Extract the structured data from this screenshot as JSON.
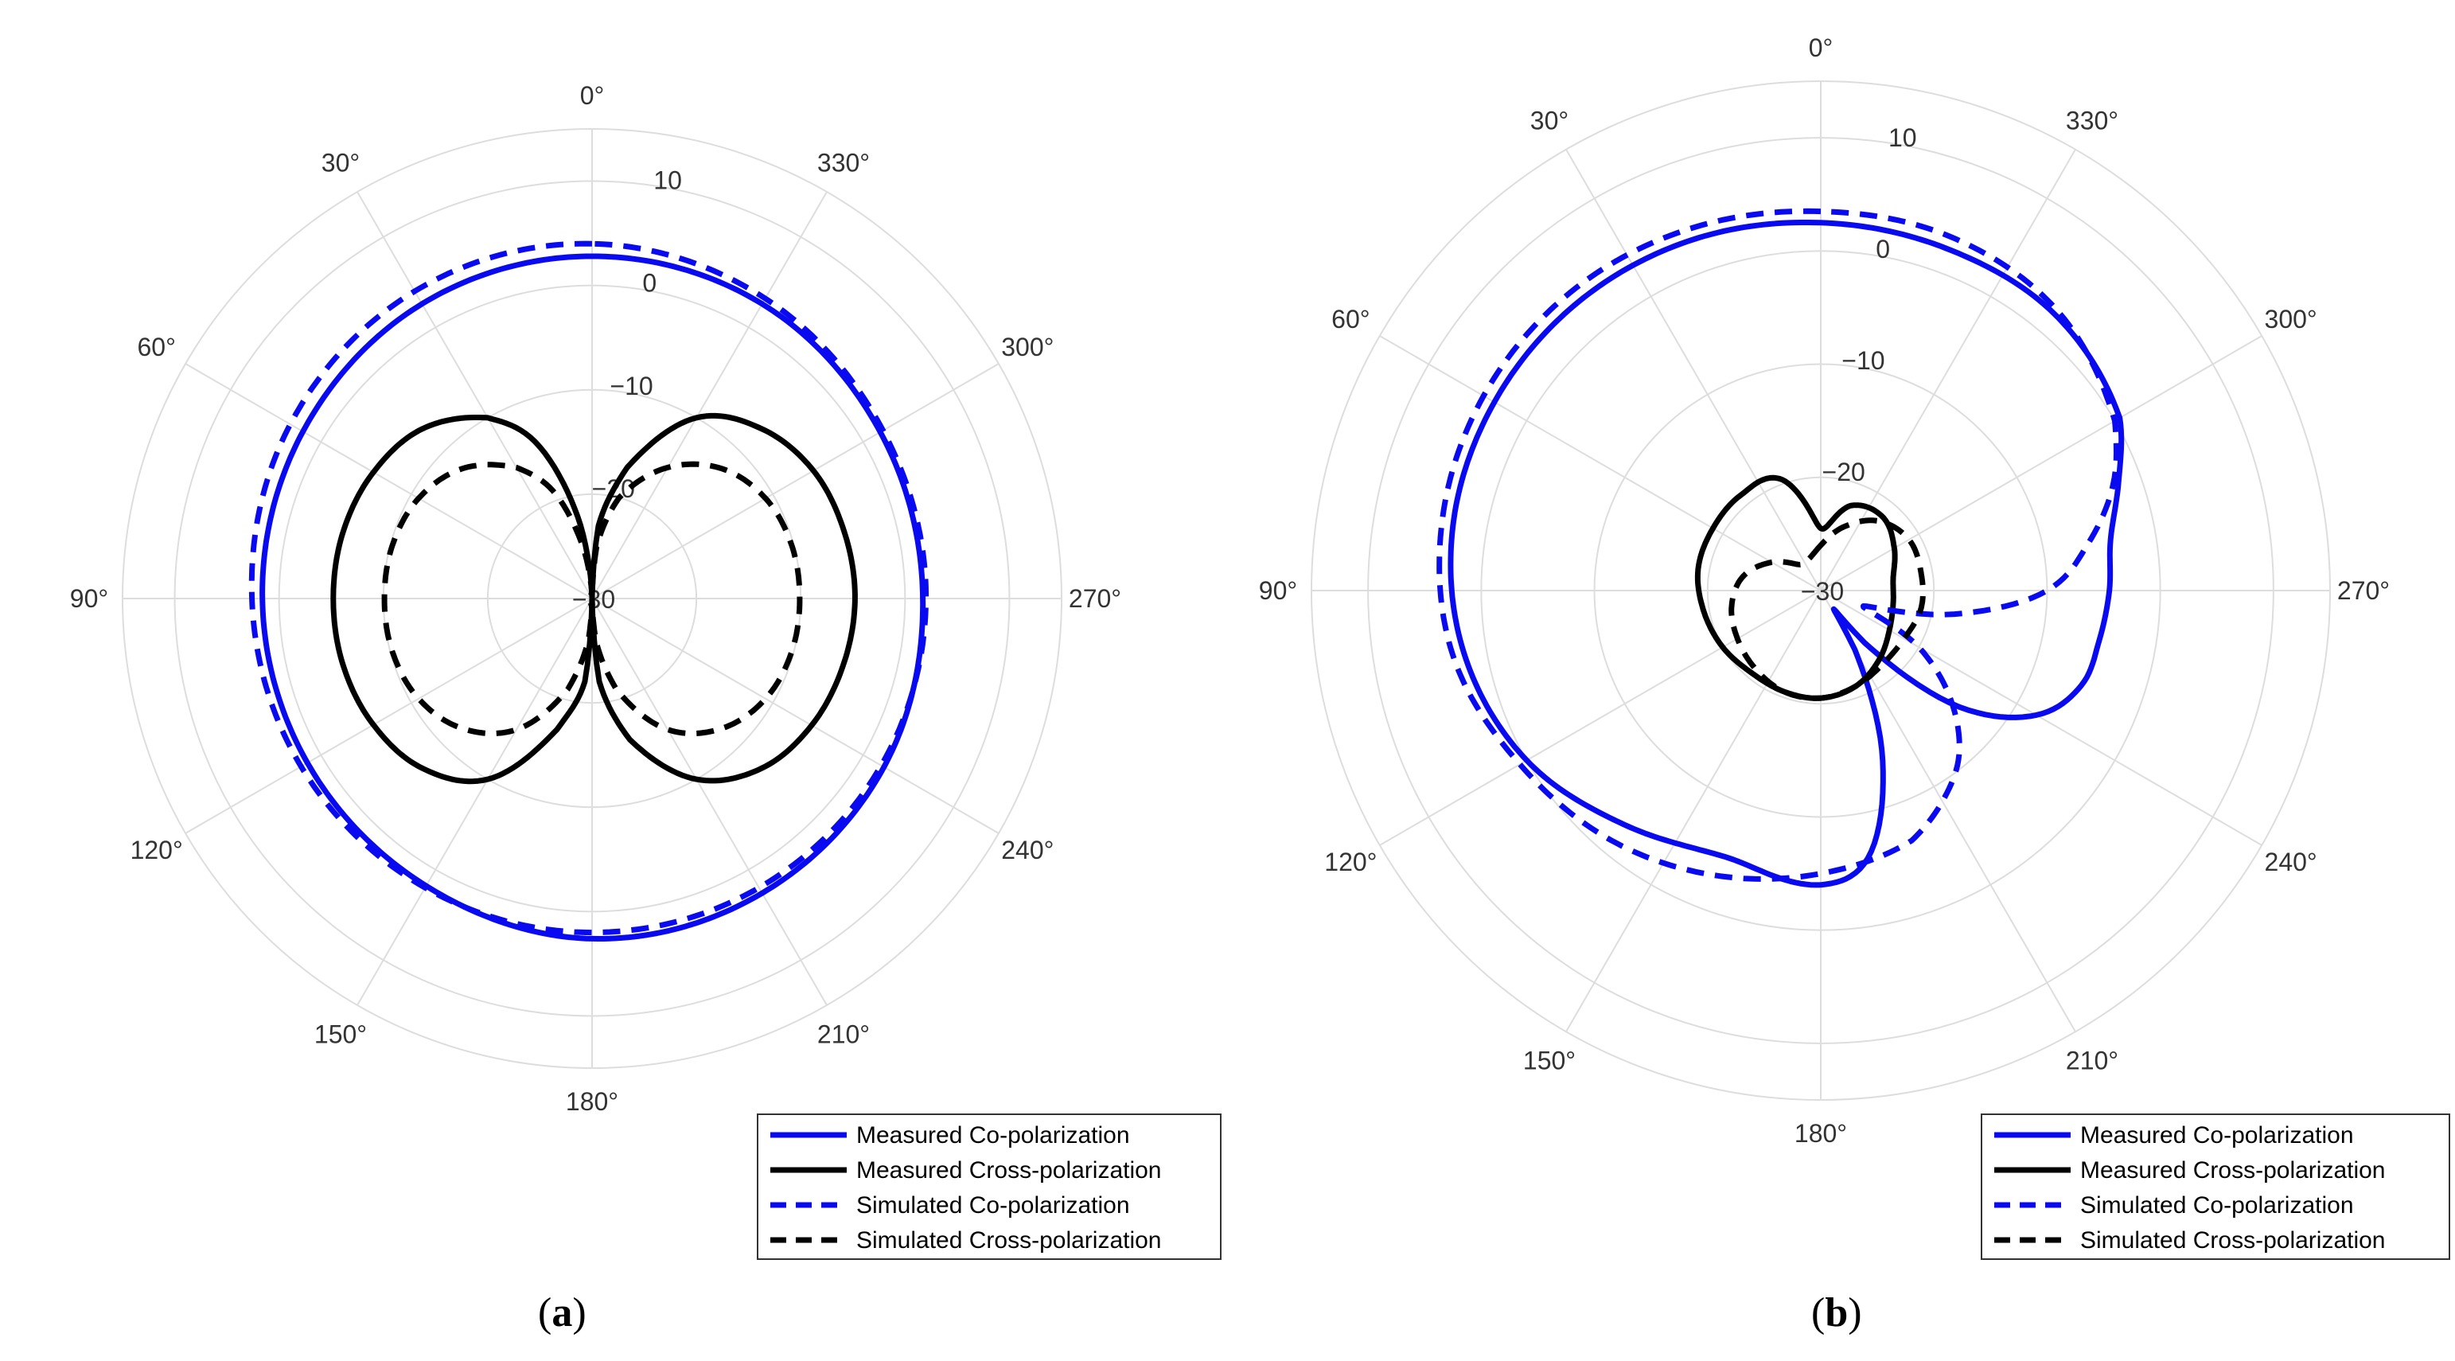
{
  "figure": {
    "captions": [
      {
        "open": "(",
        "letter": "a",
        "close": ")"
      },
      {
        "open": "(",
        "letter": "b",
        "close": ")"
      }
    ]
  },
  "colors": {
    "co_pol": "#0a0af0",
    "cross_pol": "#000000",
    "grid": "#dddddd"
  },
  "chart_data": [
    {
      "type": "line",
      "polar": true,
      "angle_direction": "clockwise-from-top-reversed",
      "angle_labels": [
        "0°",
        "30°",
        "60°",
        "90°",
        "120°",
        "150°",
        "180°",
        "210°",
        "240°",
        "270°",
        "300°",
        "330°"
      ],
      "radial_ticks": [
        10,
        0,
        -10,
        -20,
        -30
      ],
      "radial_tick_labels": [
        "10",
        "0",
        "−10",
        "−20",
        "−30"
      ],
      "rlim": [
        -30,
        15
      ],
      "grid": true,
      "legend_position": "bottom-right",
      "series": [
        {
          "name": "Measured Co-polarization",
          "style": "solid",
          "color": "blue",
          "angles": [
            0,
            30,
            60,
            90,
            120,
            150,
            180,
            210,
            240,
            270,
            300,
            330
          ],
          "values": [
            2.8,
            2.6,
            2.0,
            1.6,
            1.5,
            1.8,
            2.6,
            2.6,
            2.3,
            1.7,
            1.9,
            2.6
          ]
        },
        {
          "name": "Measured Cross-polarization",
          "style": "solid",
          "color": "black",
          "angles": [
            0,
            10,
            20,
            30,
            45,
            60,
            75,
            90,
            105,
            120,
            135,
            150,
            165,
            175,
            180,
            185,
            195,
            210,
            225,
            240,
            255,
            270,
            285,
            300,
            315,
            330,
            345,
            355
          ],
          "values": [
            -30,
            -22,
            -14,
            -10,
            -7,
            -5.8,
            -5.3,
            -5.2,
            -5.3,
            -5.8,
            -7,
            -10,
            -17,
            -22,
            -30,
            -22,
            -16,
            -10,
            -7,
            -5.7,
            -5.1,
            -4.8,
            -5,
            -5.5,
            -7,
            -10,
            -17,
            -23
          ]
        },
        {
          "name": "Simulated Co-polarization",
          "style": "dashed",
          "color": "blue",
          "angles": [
            0,
            30,
            60,
            90,
            120,
            150,
            180,
            210,
            240,
            270,
            300,
            330
          ],
          "values": [
            4.0,
            4.0,
            3.4,
            2.6,
            2.2,
            2.0,
            2.0,
            2.0,
            2.0,
            2.0,
            2.2,
            3.2
          ]
        },
        {
          "name": "Simulated Cross-polarization",
          "style": "dashed",
          "color": "black",
          "angles": [
            0,
            10,
            20,
            30,
            45,
            60,
            75,
            90,
            105,
            120,
            135,
            150,
            165,
            175,
            180,
            185,
            195,
            210,
            225,
            240,
            255,
            270,
            285,
            300,
            315,
            330,
            345,
            355
          ],
          "values": [
            -30,
            -25,
            -19,
            -15.5,
            -12.4,
            -10.8,
            -10.2,
            -10.1,
            -10.2,
            -10.8,
            -12.4,
            -15.5,
            -21,
            -26,
            -30,
            -26,
            -21,
            -15.5,
            -12.4,
            -10.8,
            -10.2,
            -10.1,
            -10.2,
            -10.8,
            -12.4,
            -15.5,
            -20,
            -25
          ]
        }
      ]
    },
    {
      "type": "line",
      "polar": true,
      "angle_direction": "clockwise-from-top-reversed",
      "angle_labels": [
        "0°",
        "30°",
        "60°",
        "90°",
        "120°",
        "150°",
        "180°",
        "210°",
        "240°",
        "270°",
        "300°",
        "330°"
      ],
      "radial_ticks": [
        10,
        0,
        -10,
        -20,
        -30
      ],
      "radial_tick_labels": [
        "10",
        "0",
        "−10",
        "−20",
        "−30"
      ],
      "rlim": [
        -30,
        15
      ],
      "grid": true,
      "legend_position": "bottom-right",
      "series": [
        {
          "name": "Measured Co-polarization",
          "style": "solid",
          "color": "blue",
          "angles": [
            0,
            20,
            40,
            60,
            80,
            100,
            120,
            140,
            160,
            180,
            190,
            200,
            210,
            215,
            220,
            230,
            240,
            250,
            260,
            270,
            280,
            290,
            300,
            320,
            340
          ],
          "values": [
            2.5,
            3.0,
            3.3,
            3.3,
            3.0,
            2.0,
            0,
            -3,
            -5,
            -4,
            -6,
            -14,
            -24,
            -28,
            -24,
            -14,
            -8,
            -5.5,
            -5,
            -4.5,
            -4,
            -2,
            0.5,
            2.0,
            2.2
          ]
        },
        {
          "name": "Measured Cross-polarization",
          "style": "solid",
          "color": "black",
          "angles": [
            0,
            20,
            40,
            60,
            80,
            100,
            120,
            140,
            160,
            180,
            200,
            220,
            240,
            260,
            280,
            300,
            320,
            340
          ],
          "values": [
            -24.5,
            -19.5,
            -19,
            -19,
            -19,
            -19.5,
            -20,
            -20.5,
            -20.5,
            -20.5,
            -21,
            -22,
            -23,
            -23.5,
            -23.5,
            -22.5,
            -21.5,
            -22
          ]
        },
        {
          "name": "Simulated Co-polarization",
          "style": "dashed",
          "color": "blue",
          "angles": [
            0,
            20,
            40,
            60,
            80,
            100,
            120,
            140,
            160,
            180,
            200,
            210,
            220,
            230,
            240,
            250,
            260,
            270,
            280,
            290,
            300,
            320,
            340
          ],
          "values": [
            3.5,
            4.0,
            4.4,
            4.4,
            4.0,
            3.0,
            0.7,
            -1.2,
            -3.2,
            -5,
            -6.5,
            -8.5,
            -11,
            -15,
            -20,
            -26,
            -18,
            -10,
            -6,
            -2.5,
            0,
            2.4,
            3.3
          ]
        },
        {
          "name": "Simulated Cross-polarization",
          "style": "dashed",
          "color": "black",
          "angles": [
            0,
            20,
            40,
            60,
            80,
            100,
            120,
            140,
            160,
            180,
            200,
            220,
            240,
            260,
            280,
            300,
            320,
            340
          ],
          "values": [
            -26,
            -27,
            -27,
            -25,
            -23,
            -22,
            -21.5,
            -21,
            -20.5,
            -20.5,
            -21,
            -21.5,
            -21.5,
            -21,
            -21,
            -21,
            -22,
            -24
          ]
        }
      ]
    }
  ]
}
